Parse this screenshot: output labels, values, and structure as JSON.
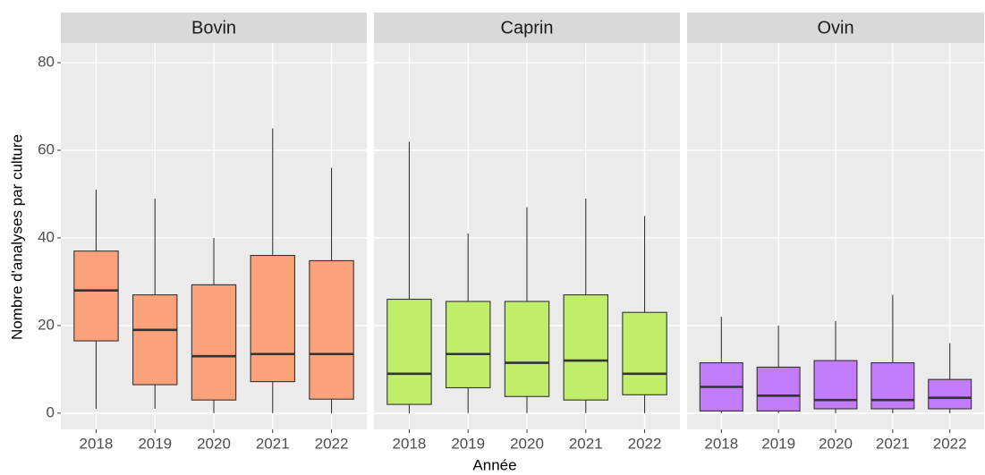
{
  "chart_data": {
    "type": "box",
    "ylabel": "Nombre d'analyses par culture",
    "xlabel": "Année",
    "ylim": [
      -3.7,
      84.5
    ],
    "yticks": [
      0,
      20,
      40,
      60,
      80
    ],
    "grid": true,
    "facets": [
      {
        "title": "Bovin",
        "color": "#fca27a",
        "categories": [
          "2018",
          "2019",
          "2020",
          "2021",
          "2022"
        ],
        "low": [
          1,
          1,
          0,
          0,
          0
        ],
        "q1": [
          16.5,
          6.5,
          3,
          7.2,
          3.2
        ],
        "median": [
          28,
          19,
          13,
          13.5,
          13.5
        ],
        "q3": [
          37,
          27,
          29.3,
          36,
          34.8
        ],
        "high": [
          51,
          49,
          40,
          65,
          56
        ]
      },
      {
        "title": "Caprin",
        "color": "#c0ed6a",
        "categories": [
          "2018",
          "2019",
          "2020",
          "2021",
          "2022"
        ],
        "low": [
          0,
          0,
          0,
          0,
          0
        ],
        "q1": [
          2,
          5.8,
          3.8,
          3,
          4.2
        ],
        "median": [
          9,
          13.5,
          11.5,
          12,
          9
        ],
        "q3": [
          26,
          25.5,
          25.5,
          27,
          23
        ],
        "high": [
          62,
          41,
          47,
          49,
          45
        ]
      },
      {
        "title": "Ovin",
        "color": "#c27bfa",
        "categories": [
          "2018",
          "2019",
          "2020",
          "2021",
          "2022"
        ],
        "low": [
          0,
          0,
          0,
          0,
          0
        ],
        "q1": [
          0.5,
          0.5,
          1,
          1,
          1
        ],
        "median": [
          6,
          4,
          3,
          3,
          3.5
        ],
        "q3": [
          11.5,
          10.5,
          12,
          11.5,
          7.7
        ],
        "high": [
          22,
          20,
          21,
          27,
          16
        ]
      }
    ]
  }
}
